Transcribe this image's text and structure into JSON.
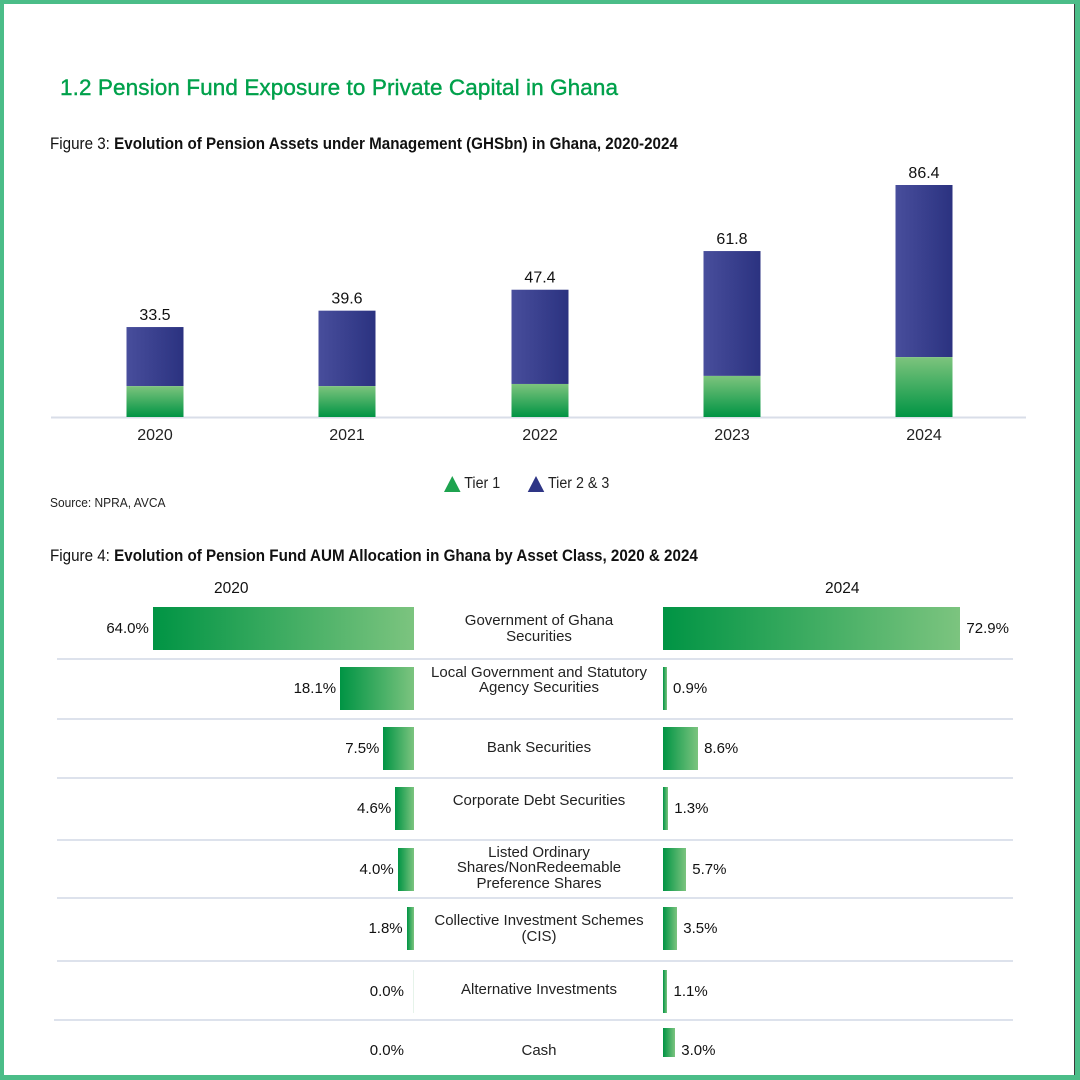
{
  "section_title": "1.2 Pension Fund Exposure to Private Capital in Ghana",
  "colors": {
    "border": "#4bbd88",
    "title_green": "#00a14b",
    "tier1_green": "#1ea34f",
    "tier23_blue": "#2e3585"
  },
  "chart_data": [
    {
      "type": "bar",
      "stacked": true,
      "title_prefix": "Figure 3: ",
      "title": "Evolution of Pension Assets under Management (GHSbn) in Ghana, 2020-2024",
      "xlabel": "",
      "ylabel": "",
      "categories": [
        "2020",
        "2021",
        "2022",
        "2023",
        "2024"
      ],
      "totals": [
        33.5,
        39.6,
        47.4,
        61.8,
        86.4
      ],
      "total_labels": [
        "33.5",
        "39.6",
        "47.4",
        "61.8",
        "86.4"
      ],
      "series": [
        {
          "name": "Tier 1",
          "values": [
            11.5,
            11.5,
            12.3,
            15.3,
            22.3
          ],
          "color": "#1ea34f"
        },
        {
          "name": "Tier 2 & 3",
          "values": [
            22.0,
            28.1,
            35.1,
            46.5,
            64.1
          ],
          "color": "#2e3585"
        }
      ],
      "ylim": [
        0,
        86.4
      ],
      "grid": false,
      "legend": "bottom-center",
      "source": "Source: NPRA, AVCA"
    },
    {
      "type": "bar",
      "orientation": "horizontal-butterfly",
      "title_prefix": "Figure 4: ",
      "title": "Evolution of Pension Fund AUM Allocation in Ghana by Asset Class, 2020 & 2024",
      "left_label": "2020",
      "right_label": "2024",
      "categories": [
        "Government of Ghana Securities",
        "Local Government and Statutory Agency Securities",
        "Bank Securities",
        "Corporate Debt Securities",
        "Listed Ordinary Shares/NonRedeemable Preference Shares",
        "Collective Investment Schemes (CIS)",
        "Alternative Investments",
        "Cash"
      ],
      "series": [
        {
          "name": "2020",
          "values": [
            64.0,
            18.1,
            7.5,
            4.6,
            4.0,
            1.8,
            0.0,
            0.0
          ],
          "labels": [
            "64.0%",
            "18.1%",
            "7.5%",
            "4.6%",
            "4.0%",
            "1.8%",
            "0.0%",
            "0.0%"
          ]
        },
        {
          "name": "2024",
          "values": [
            72.9,
            0.9,
            8.6,
            1.3,
            5.7,
            3.5,
            1.1,
            3.0
          ],
          "labels": [
            "72.9%",
            "0.9%",
            "8.6%",
            "1.3%",
            "5.7%",
            "3.5%",
            "1.1%",
            "3.0%"
          ]
        }
      ],
      "unit": "%"
    }
  ]
}
